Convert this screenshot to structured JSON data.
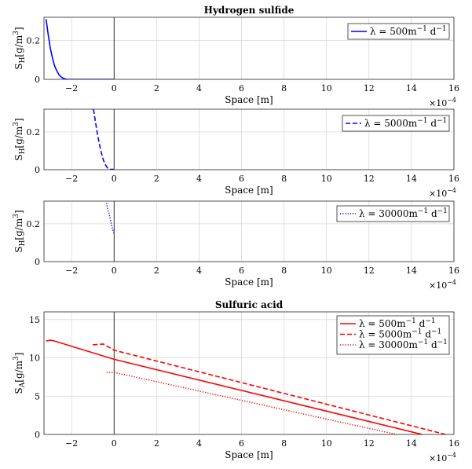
{
  "chart_data": [
    {
      "type": "line",
      "title": "Hydrogen sulfide",
      "ylabel": "S_H[g/m^3]",
      "xlabel": "Space [m]",
      "x_multiplier": "×10^-4",
      "xlim": [
        -3.3,
        16
      ],
      "ylim": [
        0,
        0.32
      ],
      "xticks": [
        "-2",
        "0",
        "2",
        "4",
        "6",
        "8",
        "10",
        "12",
        "14",
        "16"
      ],
      "xtick_values": [
        -2,
        0,
        2,
        4,
        6,
        8,
        10,
        12,
        14,
        16
      ],
      "yticks": [
        "0",
        "0.2"
      ],
      "ytick_values": [
        0,
        0.2
      ],
      "legend_position": "top-right",
      "series": [
        {
          "name": "λ = 500m^-1 d^-1",
          "color": "#0000ff",
          "style": "solid",
          "x": [
            -3.2,
            -3.1,
            -3.0,
            -2.9,
            -2.8,
            -2.7,
            -2.6,
            -2.5,
            -2.4,
            -2.3,
            -2.2,
            -2.0,
            -1.5,
            -1.0,
            0.0
          ],
          "y": [
            0.31,
            0.23,
            0.16,
            0.11,
            0.07,
            0.045,
            0.025,
            0.013,
            0.006,
            0.002,
            0.0,
            0.0,
            0.0,
            0.0,
            0.0
          ]
        }
      ]
    },
    {
      "type": "line",
      "title": "",
      "ylabel": "S_H[g/m^3]",
      "xlabel": "Space [m]",
      "x_multiplier": "×10^-4",
      "xlim": [
        -3.3,
        16
      ],
      "ylim": [
        0,
        0.32
      ],
      "xticks": [
        "-2",
        "0",
        "2",
        "4",
        "6",
        "8",
        "10",
        "12",
        "14",
        "16"
      ],
      "xtick_values": [
        -2,
        0,
        2,
        4,
        6,
        8,
        10,
        12,
        14,
        16
      ],
      "yticks": [
        "0",
        "0.2"
      ],
      "ytick_values": [
        0,
        0.2
      ],
      "legend_position": "top-right",
      "series": [
        {
          "name": "λ = 5000m^-1 d^-1",
          "color": "#0000ff",
          "style": "dashed",
          "x": [
            -0.97,
            -0.9,
            -0.8,
            -0.7,
            -0.6,
            -0.5,
            -0.4,
            -0.3,
            -0.2,
            -0.1,
            0.0
          ],
          "y": [
            0.32,
            0.27,
            0.2,
            0.14,
            0.09,
            0.05,
            0.025,
            0.008,
            0.002,
            0.002,
            0.002
          ]
        }
      ]
    },
    {
      "type": "line",
      "title": "",
      "ylabel": "S_H[g/m^3]",
      "xlabel": "Space [m]",
      "x_multiplier": "×10^-4",
      "xlim": [
        -3.3,
        16
      ],
      "ylim": [
        0,
        0.32
      ],
      "xticks": [
        "-2",
        "0",
        "2",
        "4",
        "6",
        "8",
        "10",
        "12",
        "14",
        "16"
      ],
      "xtick_values": [
        -2,
        0,
        2,
        4,
        6,
        8,
        10,
        12,
        14,
        16
      ],
      "yticks": [
        "0",
        "0.2"
      ],
      "ytick_values": [
        0,
        0.2
      ],
      "legend_position": "top-right",
      "series": [
        {
          "name": "λ = 30000m^-1 d^-1",
          "color": "#0000ff",
          "style": "dotted",
          "x": [
            -0.36,
            -0.3,
            -0.25,
            -0.2,
            -0.15,
            -0.1,
            -0.05,
            0.0
          ],
          "y": [
            0.31,
            0.28,
            0.26,
            0.235,
            0.21,
            0.185,
            0.165,
            0.145
          ]
        }
      ]
    },
    {
      "type": "line",
      "title": "Sulfuric acid",
      "ylabel": "S_A[g/m^3]",
      "xlabel": "Space [m]",
      "x_multiplier": "×10^-4",
      "xlim": [
        -3.3,
        16
      ],
      "ylim": [
        0,
        16
      ],
      "xticks": [
        "-2",
        "0",
        "2",
        "4",
        "6",
        "8",
        "10",
        "12",
        "14",
        "16"
      ],
      "xtick_values": [
        -2,
        0,
        2,
        4,
        6,
        8,
        10,
        12,
        14,
        16
      ],
      "yticks": [
        "0",
        "5",
        "10",
        "15"
      ],
      "ytick_values": [
        0,
        5,
        10,
        15
      ],
      "legend_position": "top-right",
      "series": [
        {
          "name": "λ = 500m^-1 d^-1",
          "color": "#ff0000",
          "style": "solid",
          "x": [
            -3.2,
            -3.0,
            -2.8,
            0.0,
            14.5
          ],
          "y": [
            12.2,
            12.3,
            12.2,
            9.8,
            0.0
          ]
        },
        {
          "name": "λ = 5000m^-1 d^-1",
          "color": "#ff0000",
          "style": "dashed",
          "x": [
            -1.0,
            -0.5,
            0.0,
            15.6
          ],
          "y": [
            11.7,
            11.8,
            11.0,
            0.0
          ]
        },
        {
          "name": "λ = 30000m^-1 d^-1",
          "color": "#ff0000",
          "style": "dotted",
          "x": [
            -0.35,
            0.0,
            13.3
          ],
          "y": [
            8.1,
            8.1,
            0.0
          ]
        }
      ]
    }
  ]
}
